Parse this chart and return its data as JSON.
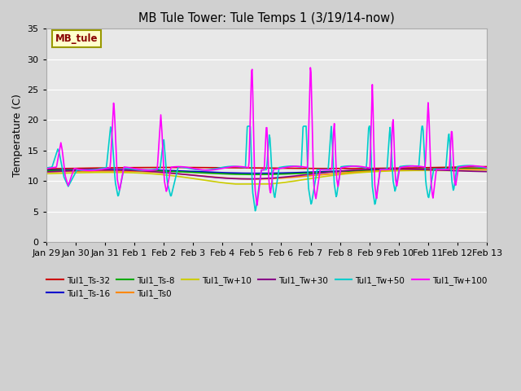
{
  "title": "MB Tule Tower: Tule Temps 1 (3/19/14-now)",
  "ylabel": "Temperature (C)",
  "xlim_labels": [
    "Jan 29",
    "Jan 30",
    "Jan 31",
    "Feb 1",
    "Feb 2",
    "Feb 3",
    "Feb 4",
    "Feb 5",
    "Feb 6",
    "Feb 7",
    "Feb 8",
    "Feb 9",
    "Feb 10",
    "Feb 11",
    "Feb 12",
    "Feb 13"
  ],
  "ylim": [
    0,
    35
  ],
  "yticks": [
    0,
    5,
    10,
    15,
    20,
    25,
    30,
    35
  ],
  "legend_box_label": "MB_tule",
  "legend_box_facecolor": "#ffffcc",
  "legend_box_edgecolor": "#999900",
  "fig_facecolor": "#d0d0d0",
  "ax_facecolor": "#e8e8e8",
  "series": [
    {
      "label": "Tul1_Ts-32",
      "color": "#cc0000",
      "lw": 1.2
    },
    {
      "label": "Tul1_Ts-16",
      "color": "#0000cc",
      "lw": 1.2
    },
    {
      "label": "Tul1_Ts-8",
      "color": "#00aa00",
      "lw": 1.2
    },
    {
      "label": "Tul1_Ts0",
      "color": "#ff8800",
      "lw": 1.2
    },
    {
      "label": "Tul1_Tw+10",
      "color": "#cccc00",
      "lw": 1.2
    },
    {
      "label": "Tul1_Tw+30",
      "color": "#880088",
      "lw": 1.2
    },
    {
      "label": "Tul1_Tw+50",
      "color": "#00cccc",
      "lw": 1.2
    },
    {
      "label": "Tul1_Tw+100",
      "color": "#ff00ff",
      "lw": 1.2
    }
  ]
}
